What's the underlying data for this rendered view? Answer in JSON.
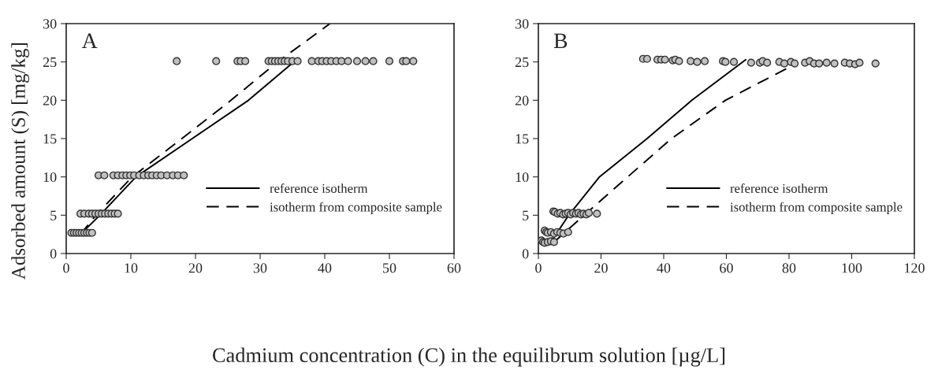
{
  "chart_data": [
    {
      "type": "scatter",
      "ylabel": "Adsorbed amount (S) [mg/kg]",
      "xlabel": "Cadmium concentration (C) in the equilibrum solution [µg/L]",
      "annotations": [
        "A"
      ],
      "xlim": [
        0,
        60
      ],
      "xticks": [
        0,
        10,
        20,
        30,
        40,
        50,
        60
      ],
      "ylim": [
        0,
        30
      ],
      "yticks": [
        0,
        5,
        10,
        15,
        20,
        25,
        30
      ],
      "grid": false,
      "legend": "lower right",
      "series": [
        {
          "color": "#c0c0c0",
          "marker": "circle",
          "x": [
            17.1,
            23.2,
            26.5,
            27,
            27.7,
            31.3,
            31.8,
            32.3,
            32.8,
            33.3,
            33.8,
            34.3,
            35,
            35.8,
            38,
            39,
            39.6,
            40.3,
            41,
            41.8,
            42.6,
            43.6,
            45,
            46.3,
            47.5,
            50,
            52.1,
            52.6,
            53.7,
            5.0,
            5.9,
            7.3,
            8.0,
            8.7,
            9.3,
            9.9,
            10.5,
            11.3,
            12,
            12.7,
            13.3,
            14,
            14.7,
            15.6,
            16.5,
            17.3,
            18.2,
            2.2,
            2.8,
            3.5,
            4,
            4.5,
            5,
            5.5,
            6,
            6.5,
            7,
            7.5,
            8,
            0.8,
            1.2,
            1.6,
            2,
            2.4,
            2.8,
            3.2,
            3.6,
            4
          ],
          "values": [
            25.1,
            25.1,
            25.1,
            25.1,
            25.1,
            25.1,
            25.1,
            25.1,
            25.1,
            25.1,
            25.1,
            25.1,
            25.1,
            25.1,
            25.1,
            25.1,
            25.1,
            25.1,
            25.1,
            25.1,
            25.1,
            25.1,
            25.1,
            25.1,
            25.1,
            25.1,
            25.1,
            25.1,
            25.1,
            10.2,
            10.2,
            10.2,
            10.2,
            10.2,
            10.2,
            10.2,
            10.2,
            10.2,
            10.2,
            10.2,
            10.2,
            10.2,
            10.2,
            10.2,
            10.2,
            10.2,
            10.2,
            5.2,
            5.2,
            5.2,
            5.2,
            5.2,
            5.2,
            5.2,
            5.2,
            5.2,
            5.2,
            5.2,
            5.2,
            2.7,
            2.7,
            2.7,
            2.7,
            2.7,
            2.7,
            2.7,
            2.7,
            2.7
          ]
        },
        {
          "type": "line",
          "name": "reference isotherm",
          "color": "#000000",
          "line_style": "solid",
          "marker": "none",
          "x": [
            2.2,
            5.2,
            10.8,
            19.5,
            28.2,
            35.2
          ],
          "values": [
            2.5,
            5,
            10,
            15,
            20,
            25
          ]
        },
        {
          "type": "line",
          "name": "isotherm from composite sample",
          "color": "#000000",
          "line_style": "dashed",
          "marker": "none",
          "x": [
            2.2,
            4.6,
            10.2,
            17.9,
            25.5,
            32.7,
            40.8
          ],
          "values": [
            2.5,
            5,
            10,
            15,
            20,
            25,
            30
          ]
        }
      ]
    },
    {
      "type": "scatter",
      "annotations": [
        "B"
      ],
      "xlim": [
        0,
        120
      ],
      "xticks": [
        0,
        20,
        40,
        60,
        80,
        100,
        120
      ],
      "ylim": [
        0,
        30
      ],
      "yticks": [
        0,
        5,
        10,
        15,
        20,
        25,
        30
      ],
      "grid": false,
      "legend": "lower right",
      "series": [
        {
          "color": "#c0c0c0",
          "marker": "circle",
          "x": [
            33.4,
            34.7,
            38.0,
            39.2,
            40.4,
            42.9,
            43.7,
            44.9,
            48.6,
            50.7,
            53.1,
            58.9,
            59.7,
            62.4,
            67.9,
            70.7,
            71.6,
            73.0,
            76.9,
            78.5,
            80.6,
            81.8,
            85.1,
            86.6,
            88.0,
            89.6,
            92.0,
            94.5,
            97.8,
            99.4,
            101.1,
            102.5,
            107.6,
            4.8,
            5.3,
            6.2,
            7.0,
            7.9,
            8.7,
            9.5,
            10.3,
            11.1,
            12.0,
            12.8,
            13.6,
            14.4,
            15.3,
            16.1,
            18.7,
            2,
            2.5,
            3,
            4,
            5,
            6,
            7,
            8,
            9.5,
            1,
            1.5,
            2,
            3,
            4,
            5
          ],
          "values": [
            25.4,
            25.4,
            25.3,
            25.3,
            25.3,
            25.2,
            25.3,
            25.1,
            25.1,
            25.0,
            25.1,
            25.1,
            25.0,
            25.0,
            24.9,
            24.9,
            25.1,
            24.9,
            25.0,
            24.8,
            25.0,
            24.8,
            24.9,
            25.1,
            24.8,
            24.8,
            24.9,
            24.8,
            24.9,
            24.8,
            24.7,
            24.9,
            24.8,
            5.5,
            5.4,
            5.2,
            5.3,
            5.1,
            5.2,
            5.3,
            5.1,
            5.3,
            5.2,
            5.3,
            5.1,
            5.2,
            5.1,
            5.3,
            5.2,
            3.0,
            2.8,
            2.7,
            2.8,
            2.6,
            2.8,
            2.7,
            2.6,
            2.8,
            1.7,
            1.5,
            1.4,
            1.5,
            1.6,
            1.5
          ]
        },
        {
          "type": "line",
          "name": "reference isotherm",
          "color": "#000000",
          "line_style": "solid",
          "marker": "none",
          "x": [
            4,
            9.7,
            19.5,
            34.7,
            49,
            66.2
          ],
          "values": [
            1.5,
            5,
            10,
            15,
            20,
            25.3
          ]
        },
        {
          "type": "line",
          "name": "isotherm from composite sample",
          "color": "#000000",
          "line_style": "dashed",
          "marker": "none",
          "x": [
            5,
            14.6,
            28.5,
            42.5,
            59.7,
            81
          ],
          "values": [
            1.5,
            5,
            10,
            15,
            20,
            24.5
          ]
        }
      ]
    }
  ]
}
